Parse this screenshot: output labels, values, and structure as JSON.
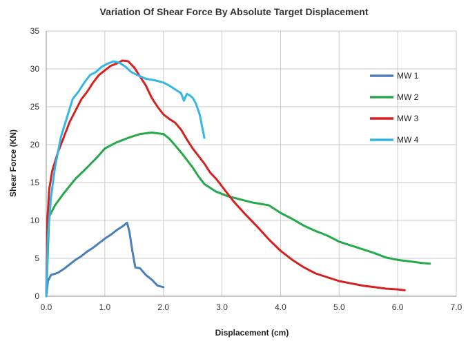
{
  "chart_data": {
    "type": "line",
    "title": "Variation Of Shear Force By Absolute Target Displacement",
    "xlabel": "Displacement  (cm)",
    "ylabel": "Shear Force (KN)",
    "xlim": [
      0,
      7
    ],
    "ylim": [
      0,
      35
    ],
    "x_ticks": [
      "0.0",
      "1.0",
      "2.0",
      "3.0",
      "4.0",
      "5.0",
      "6.0",
      "7.0"
    ],
    "y_ticks": [
      "0",
      "5",
      "10",
      "15",
      "20",
      "25",
      "30",
      "35"
    ],
    "grid": true,
    "legend_position": "right",
    "series": [
      {
        "name": "MW 1",
        "color": "#4a7ebb",
        "points": [
          [
            0,
            0
          ],
          [
            0.03,
            2
          ],
          [
            0.08,
            2.8
          ],
          [
            0.2,
            3.1
          ],
          [
            0.3,
            3.6
          ],
          [
            0.4,
            4.2
          ],
          [
            0.5,
            4.8
          ],
          [
            0.6,
            5.3
          ],
          [
            0.7,
            5.9
          ],
          [
            0.8,
            6.4
          ],
          [
            0.9,
            7.0
          ],
          [
            1.0,
            7.6
          ],
          [
            1.1,
            8.1
          ],
          [
            1.2,
            8.7
          ],
          [
            1.3,
            9.2
          ],
          [
            1.38,
            9.7
          ],
          [
            1.42,
            8.5
          ],
          [
            1.47,
            6
          ],
          [
            1.52,
            3.8
          ],
          [
            1.6,
            3.7
          ],
          [
            1.7,
            2.8
          ],
          [
            1.8,
            2.2
          ],
          [
            1.9,
            1.4
          ],
          [
            2.0,
            1.2
          ]
        ]
      },
      {
        "name": "MW 2",
        "color": "#24a84a",
        "points": [
          [
            0,
            0
          ],
          [
            0.05,
            10.5
          ],
          [
            0.15,
            12
          ],
          [
            0.3,
            13.6
          ],
          [
            0.5,
            15.5
          ],
          [
            0.7,
            17
          ],
          [
            0.9,
            18.6
          ],
          [
            1.0,
            19.5
          ],
          [
            1.2,
            20.3
          ],
          [
            1.4,
            20.9
          ],
          [
            1.6,
            21.4
          ],
          [
            1.8,
            21.6
          ],
          [
            2.0,
            21.4
          ],
          [
            2.1,
            20.8
          ],
          [
            2.3,
            19
          ],
          [
            2.5,
            17
          ],
          [
            2.6,
            15.8
          ],
          [
            2.7,
            14.8
          ],
          [
            2.9,
            13.8
          ],
          [
            3.1,
            13.2
          ],
          [
            3.3,
            12.8
          ],
          [
            3.5,
            12.4
          ],
          [
            3.8,
            12.0
          ],
          [
            4.0,
            11.0
          ],
          [
            4.2,
            10.2
          ],
          [
            4.4,
            9.3
          ],
          [
            4.6,
            8.6
          ],
          [
            4.8,
            8.0
          ],
          [
            5.0,
            7.2
          ],
          [
            5.2,
            6.7
          ],
          [
            5.4,
            6.2
          ],
          [
            5.6,
            5.7
          ],
          [
            5.8,
            5.1
          ],
          [
            6.0,
            4.8
          ],
          [
            6.2,
            4.6
          ],
          [
            6.4,
            4.4
          ],
          [
            6.55,
            4.3
          ]
        ]
      },
      {
        "name": "MW 3",
        "color": "#d62020",
        "points": [
          [
            0,
            0
          ],
          [
            0.02,
            10
          ],
          [
            0.05,
            14
          ],
          [
            0.1,
            16.5
          ],
          [
            0.2,
            19
          ],
          [
            0.3,
            21
          ],
          [
            0.4,
            23
          ],
          [
            0.5,
            24.5
          ],
          [
            0.6,
            26
          ],
          [
            0.7,
            27
          ],
          [
            0.8,
            28.2
          ],
          [
            0.9,
            29.2
          ],
          [
            1.0,
            29.8
          ],
          [
            1.1,
            30.4
          ],
          [
            1.2,
            30.7
          ],
          [
            1.3,
            31.1
          ],
          [
            1.4,
            31
          ],
          [
            1.5,
            30.2
          ],
          [
            1.6,
            29
          ],
          [
            1.7,
            27.8
          ],
          [
            1.8,
            26.2
          ],
          [
            1.9,
            25
          ],
          [
            2.0,
            24
          ],
          [
            2.1,
            23.4
          ],
          [
            2.2,
            22.9
          ],
          [
            2.3,
            22
          ],
          [
            2.4,
            20.7
          ],
          [
            2.5,
            19.5
          ],
          [
            2.6,
            18.5
          ],
          [
            2.7,
            17.5
          ],
          [
            2.8,
            16.3
          ],
          [
            2.9,
            15.5
          ],
          [
            3.0,
            14.5
          ],
          [
            3.2,
            12.5
          ],
          [
            3.4,
            10.8
          ],
          [
            3.6,
            9.2
          ],
          [
            3.8,
            7.5
          ],
          [
            4.0,
            6.0
          ],
          [
            4.2,
            4.8
          ],
          [
            4.4,
            3.8
          ],
          [
            4.6,
            3.0
          ],
          [
            4.8,
            2.5
          ],
          [
            5.0,
            2.0
          ],
          [
            5.2,
            1.7
          ],
          [
            5.4,
            1.4
          ],
          [
            5.6,
            1.2
          ],
          [
            5.8,
            1.0
          ],
          [
            6.0,
            0.9
          ],
          [
            6.12,
            0.8
          ]
        ]
      },
      {
        "name": "MW 4",
        "color": "#33b5e5",
        "points": [
          [
            0,
            0
          ],
          [
            0.03,
            8
          ],
          [
            0.08,
            13
          ],
          [
            0.15,
            17
          ],
          [
            0.25,
            21
          ],
          [
            0.35,
            23.5
          ],
          [
            0.45,
            26
          ],
          [
            0.55,
            27
          ],
          [
            0.65,
            28.2
          ],
          [
            0.75,
            29.2
          ],
          [
            0.85,
            29.6
          ],
          [
            0.95,
            30.3
          ],
          [
            1.05,
            30.7
          ],
          [
            1.15,
            31
          ],
          [
            1.25,
            30.8
          ],
          [
            1.35,
            30.3
          ],
          [
            1.45,
            29.6
          ],
          [
            1.55,
            29.2
          ],
          [
            1.7,
            28.7
          ],
          [
            1.85,
            28.5
          ],
          [
            2.0,
            28.2
          ],
          [
            2.1,
            27.8
          ],
          [
            2.2,
            27.3
          ],
          [
            2.3,
            26.8
          ],
          [
            2.35,
            25.8
          ],
          [
            2.4,
            26.7
          ],
          [
            2.45,
            26.5
          ],
          [
            2.5,
            26.2
          ],
          [
            2.55,
            25.5
          ],
          [
            2.62,
            24
          ],
          [
            2.67,
            22
          ],
          [
            2.7,
            20.9
          ]
        ]
      }
    ]
  }
}
